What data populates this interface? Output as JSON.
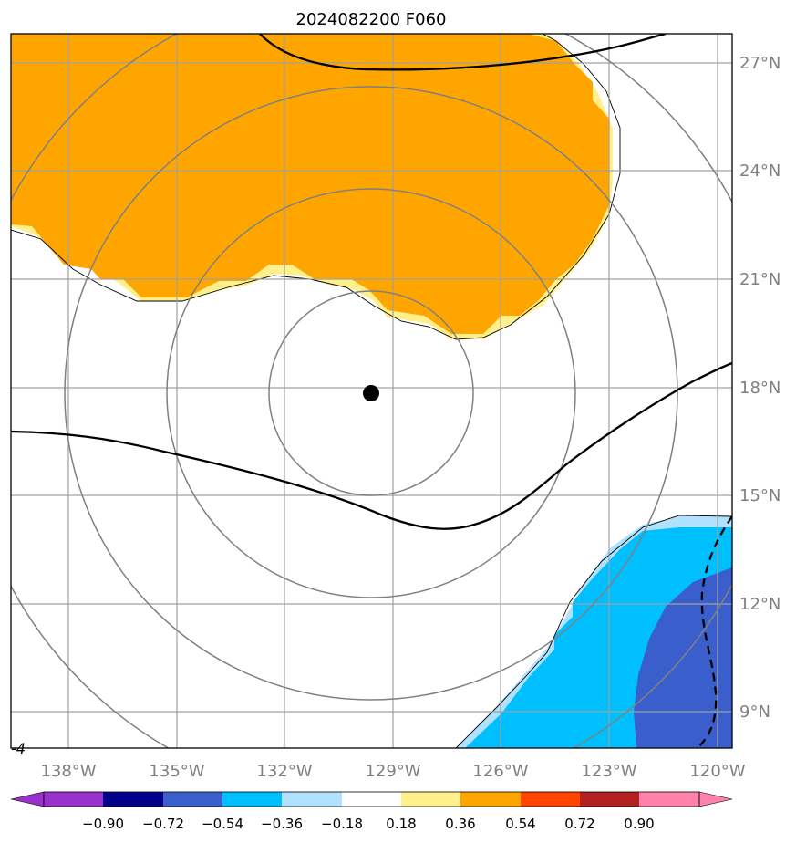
{
  "map": {
    "title": "2024082200 F060",
    "lon_labels": [
      "138°W",
      "135°W",
      "132°W",
      "129°W",
      "126°W",
      "123°W",
      "120°W"
    ],
    "lat_labels": [
      "27°N",
      "24°N",
      "21°N",
      "18°N",
      "15°N",
      "12°N",
      "9°N"
    ],
    "extent": {
      "lon_min": -139.5,
      "lon_max": -119.5,
      "lat_min": 8.0,
      "lat_max": 27.8
    },
    "grid": true,
    "storm_center": {
      "lon": -129.5,
      "lat": 17.8
    },
    "range_rings": 4,
    "corner_label": "-4",
    "colors": {
      "positive_fill": "#ffa500",
      "positive_edge": "#fff08c",
      "negative_fill": "#00bfff",
      "negative_deep": "#3a5fcd",
      "negative_edge": "#b0e2ff",
      "grid": "#a0a0a0",
      "ring": "#808080"
    }
  },
  "colorbar": {
    "ticks": [
      "−0.90",
      "−0.72",
      "−0.54",
      "−0.36",
      "−0.18",
      "0.18",
      "0.36",
      "0.54",
      "0.72",
      "0.90"
    ],
    "colors": [
      "#9932cc",
      "#00008b",
      "#3a5fcd",
      "#00bfff",
      "#b0e2ff",
      "#ffffff",
      "#fff08c",
      "#ffa500",
      "#ff4500",
      "#b22222",
      "#ff82ab"
    ]
  }
}
